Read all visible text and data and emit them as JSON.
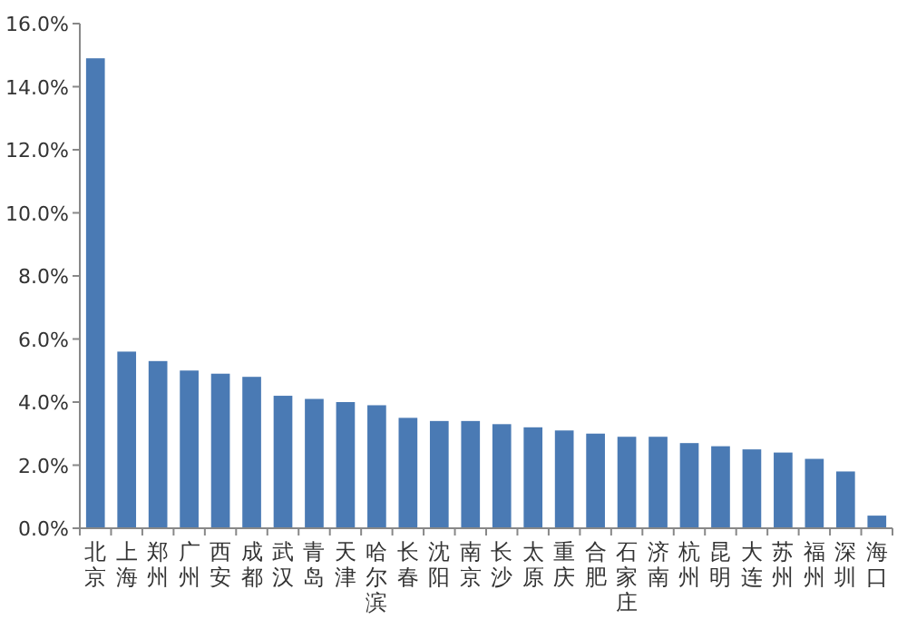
{
  "chart_data": {
    "type": "bar",
    "categories": [
      "北京",
      "上海",
      "郑州",
      "广州",
      "西安",
      "成都",
      "武汉",
      "青岛",
      "天津",
      "哈尔滨",
      "长春",
      "沈阳",
      "南京",
      "长沙",
      "太原",
      "重庆",
      "合肥",
      "石家庄",
      "济南",
      "杭州",
      "昆明",
      "大连",
      "苏州",
      "福州",
      "深圳",
      "海口"
    ],
    "values": [
      14.9,
      5.6,
      5.3,
      5.0,
      4.9,
      4.8,
      4.2,
      4.1,
      4.0,
      3.9,
      3.5,
      3.4,
      3.4,
      3.3,
      3.2,
      3.1,
      3.0,
      2.9,
      2.9,
      2.7,
      2.6,
      2.5,
      2.4,
      2.2,
      1.8,
      0.4
    ],
    "color": "#4a7ab4",
    "ylim": [
      0,
      16
    ],
    "yticks": [
      {
        "value": 0,
        "label": "0.0%"
      },
      {
        "value": 2,
        "label": "2.0%"
      },
      {
        "value": 4,
        "label": "4.0%"
      },
      {
        "value": 6,
        "label": "6.0%"
      },
      {
        "value": 8,
        "label": "8.0%"
      },
      {
        "value": 10,
        "label": "10.0%"
      },
      {
        "value": 12,
        "label": "12.0%"
      },
      {
        "value": 14,
        "label": "14.0%"
      },
      {
        "value": 16,
        "label": "16.0%"
      }
    ]
  }
}
